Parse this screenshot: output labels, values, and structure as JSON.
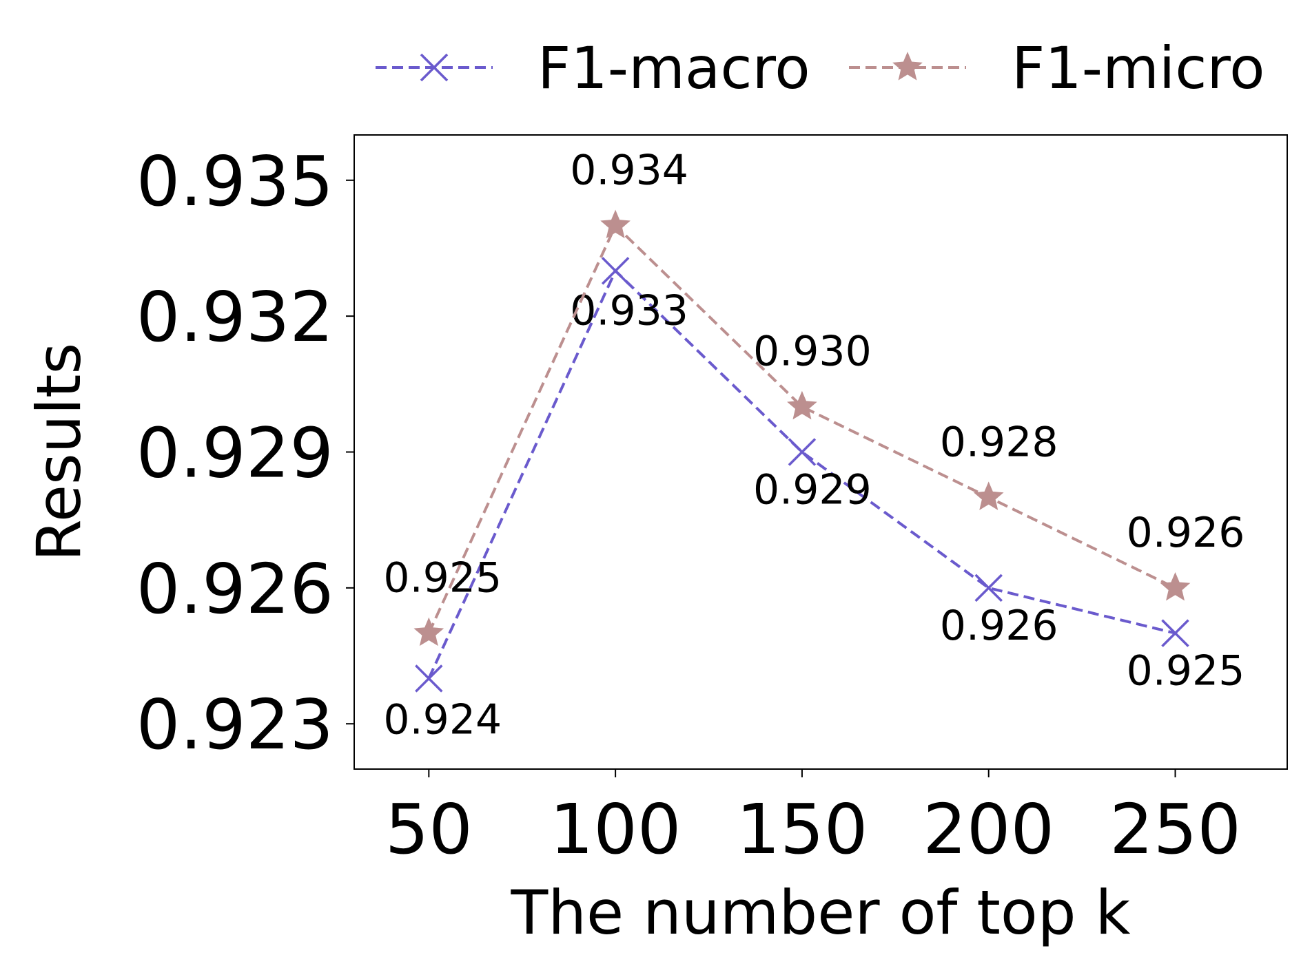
{
  "chart_data": {
    "type": "line",
    "title": "",
    "xlabel": "The number of top k",
    "ylabel": "Results",
    "x": [
      50,
      100,
      150,
      200,
      250
    ],
    "x_tick_labels": [
      "50",
      "100",
      "150",
      "200",
      "250"
    ],
    "xlim": [
      30,
      280
    ],
    "ylim": [
      0.922,
      0.936
    ],
    "y_ticks": [
      0.923,
      0.926,
      0.929,
      0.932,
      0.935
    ],
    "y_tick_labels": [
      "0.923",
      "0.926",
      "0.929",
      "0.932",
      "0.935"
    ],
    "grid": false,
    "legend": {
      "placement": "top, above plot",
      "entries": [
        "F1-macro",
        "F1-micro"
      ]
    },
    "series": [
      {
        "name": "F1-macro",
        "values": [
          0.924,
          0.933,
          0.929,
          0.926,
          0.925
        ],
        "labels": [
          "0.924",
          "0.933",
          "0.929",
          "0.926",
          "0.925"
        ],
        "color": "#6a5acd",
        "line_style": "dashed",
        "marker": "x"
      },
      {
        "name": "F1-micro",
        "values": [
          0.925,
          0.934,
          0.93,
          0.928,
          0.926
        ],
        "labels": [
          "0.925",
          "0.934",
          "0.930",
          "0.928",
          "0.926"
        ],
        "color": "#bc8f8f",
        "line_style": "dashed",
        "marker": "star"
      }
    ]
  }
}
